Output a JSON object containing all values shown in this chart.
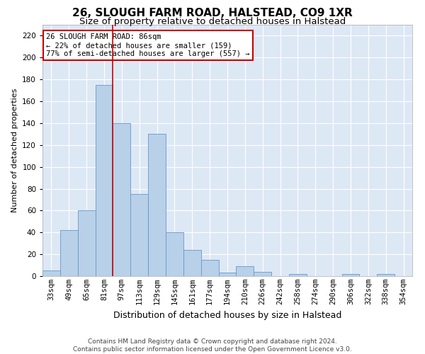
{
  "title1": "26, SLOUGH FARM ROAD, HALSTEAD, CO9 1XR",
  "title2": "Size of property relative to detached houses in Halstead",
  "xlabel": "Distribution of detached houses by size in Halstead",
  "ylabel": "Number of detached properties",
  "categories": [
    "33sqm",
    "49sqm",
    "65sqm",
    "81sqm",
    "97sqm",
    "113sqm",
    "129sqm",
    "145sqm",
    "161sqm",
    "177sqm",
    "194sqm",
    "210sqm",
    "226sqm",
    "242sqm",
    "258sqm",
    "274sqm",
    "290sqm",
    "306sqm",
    "322sqm",
    "338sqm",
    "354sqm"
  ],
  "values": [
    5,
    42,
    60,
    175,
    140,
    75,
    130,
    40,
    24,
    15,
    3,
    9,
    4,
    0,
    2,
    0,
    0,
    2,
    0,
    2,
    0
  ],
  "bar_color": "#b8d0e8",
  "bar_edge_color": "#6699cc",
  "vline_color": "#cc0000",
  "vline_index": 3.5,
  "ylim": [
    0,
    230
  ],
  "yticks": [
    0,
    20,
    40,
    60,
    80,
    100,
    120,
    140,
    160,
    180,
    200,
    220
  ],
  "annotation_box_text": "26 SLOUGH FARM ROAD: 86sqm\n← 22% of detached houses are smaller (159)\n77% of semi-detached houses are larger (557) →",
  "annotation_box_color": "#ffffff",
  "annotation_box_edgecolor": "#cc0000",
  "footer1": "Contains HM Land Registry data © Crown copyright and database right 2024.",
  "footer2": "Contains public sector information licensed under the Open Government Licence v3.0.",
  "bg_color": "#dde8f5",
  "grid_color": "#ffffff",
  "fig_bg_color": "#ffffff",
  "title1_fontsize": 11,
  "title2_fontsize": 9.5,
  "xlabel_fontsize": 9,
  "ylabel_fontsize": 8,
  "tick_fontsize": 7.5,
  "ann_fontsize": 7.5,
  "footer_fontsize": 6.5
}
